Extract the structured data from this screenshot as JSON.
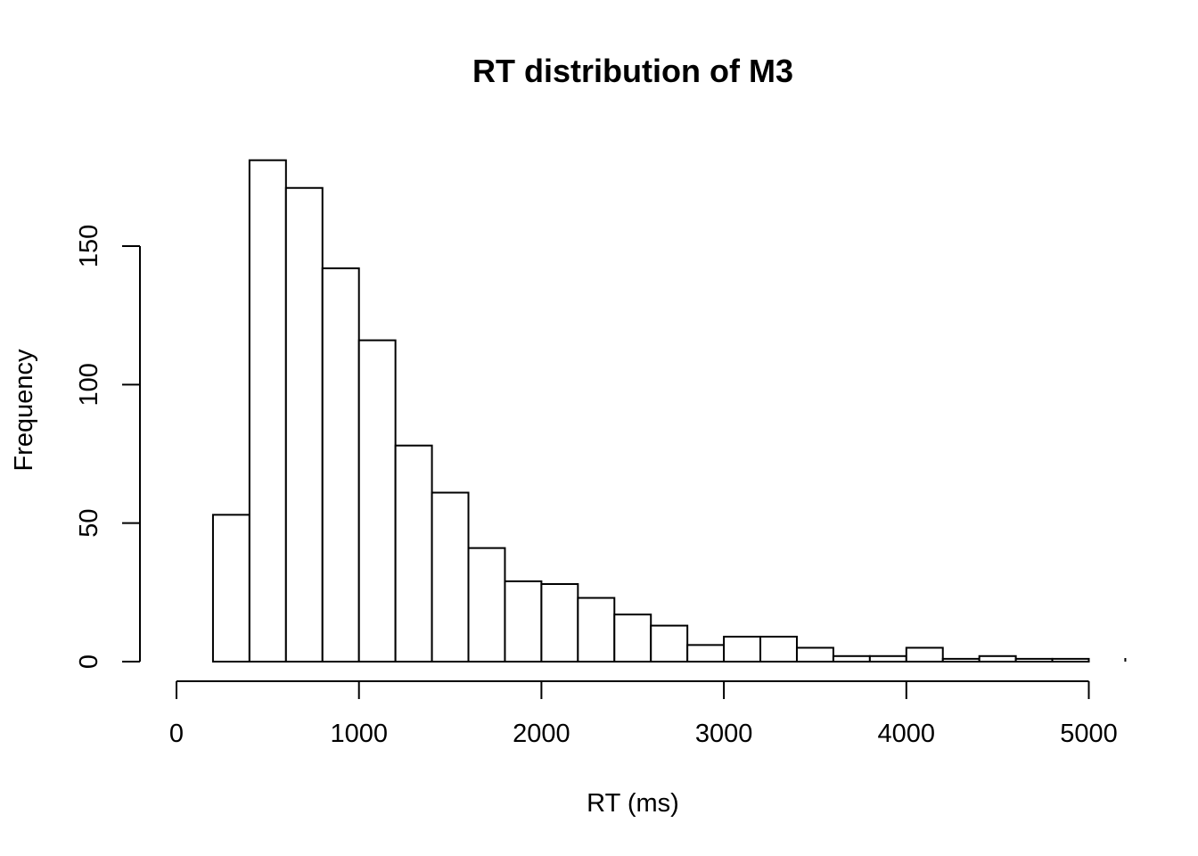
{
  "chart_data": {
    "type": "bar",
    "subtype": "histogram",
    "title": "RT distribution of M3",
    "xlabel": "RT (ms)",
    "ylabel": "Frequency",
    "bin_width": 200,
    "bins": [
      {
        "start": 200,
        "end": 400,
        "count": 53
      },
      {
        "start": 400,
        "end": 600,
        "count": 181
      },
      {
        "start": 600,
        "end": 800,
        "count": 171
      },
      {
        "start": 800,
        "end": 1000,
        "count": 142
      },
      {
        "start": 1000,
        "end": 1200,
        "count": 116
      },
      {
        "start": 1200,
        "end": 1400,
        "count": 78
      },
      {
        "start": 1400,
        "end": 1600,
        "count": 61
      },
      {
        "start": 1600,
        "end": 1800,
        "count": 41
      },
      {
        "start": 1800,
        "end": 2000,
        "count": 29
      },
      {
        "start": 2000,
        "end": 2200,
        "count": 28
      },
      {
        "start": 2200,
        "end": 2400,
        "count": 23
      },
      {
        "start": 2400,
        "end": 2600,
        "count": 17
      },
      {
        "start": 2600,
        "end": 2800,
        "count": 13
      },
      {
        "start": 2800,
        "end": 3000,
        "count": 6
      },
      {
        "start": 3000,
        "end": 3200,
        "count": 9
      },
      {
        "start": 3200,
        "end": 3400,
        "count": 9
      },
      {
        "start": 3400,
        "end": 3600,
        "count": 5
      },
      {
        "start": 3600,
        "end": 3800,
        "count": 2
      },
      {
        "start": 3800,
        "end": 4000,
        "count": 2
      },
      {
        "start": 4000,
        "end": 4200,
        "count": 5
      },
      {
        "start": 4200,
        "end": 4400,
        "count": 1
      },
      {
        "start": 4400,
        "end": 4600,
        "count": 2
      },
      {
        "start": 4600,
        "end": 4800,
        "count": 1
      },
      {
        "start": 4800,
        "end": 5000,
        "count": 1
      },
      {
        "start": 5000,
        "end": 5200,
        "count": 0
      }
    ],
    "x_ticks": [
      0,
      1000,
      2000,
      3000,
      4000,
      5000
    ],
    "x_tick_labels": [
      "0",
      "1000",
      "2000",
      "3000",
      "4000",
      "5000"
    ],
    "y_ticks": [
      0,
      50,
      100,
      150
    ],
    "y_tick_labels": [
      "0",
      "50",
      "100",
      "150"
    ],
    "xlim": [
      0,
      5200
    ],
    "ylim": [
      0,
      181
    ],
    "grid": false,
    "legend": "none",
    "colors": {
      "bar_fill": "#ffffff",
      "bar_stroke": "#000000"
    }
  }
}
